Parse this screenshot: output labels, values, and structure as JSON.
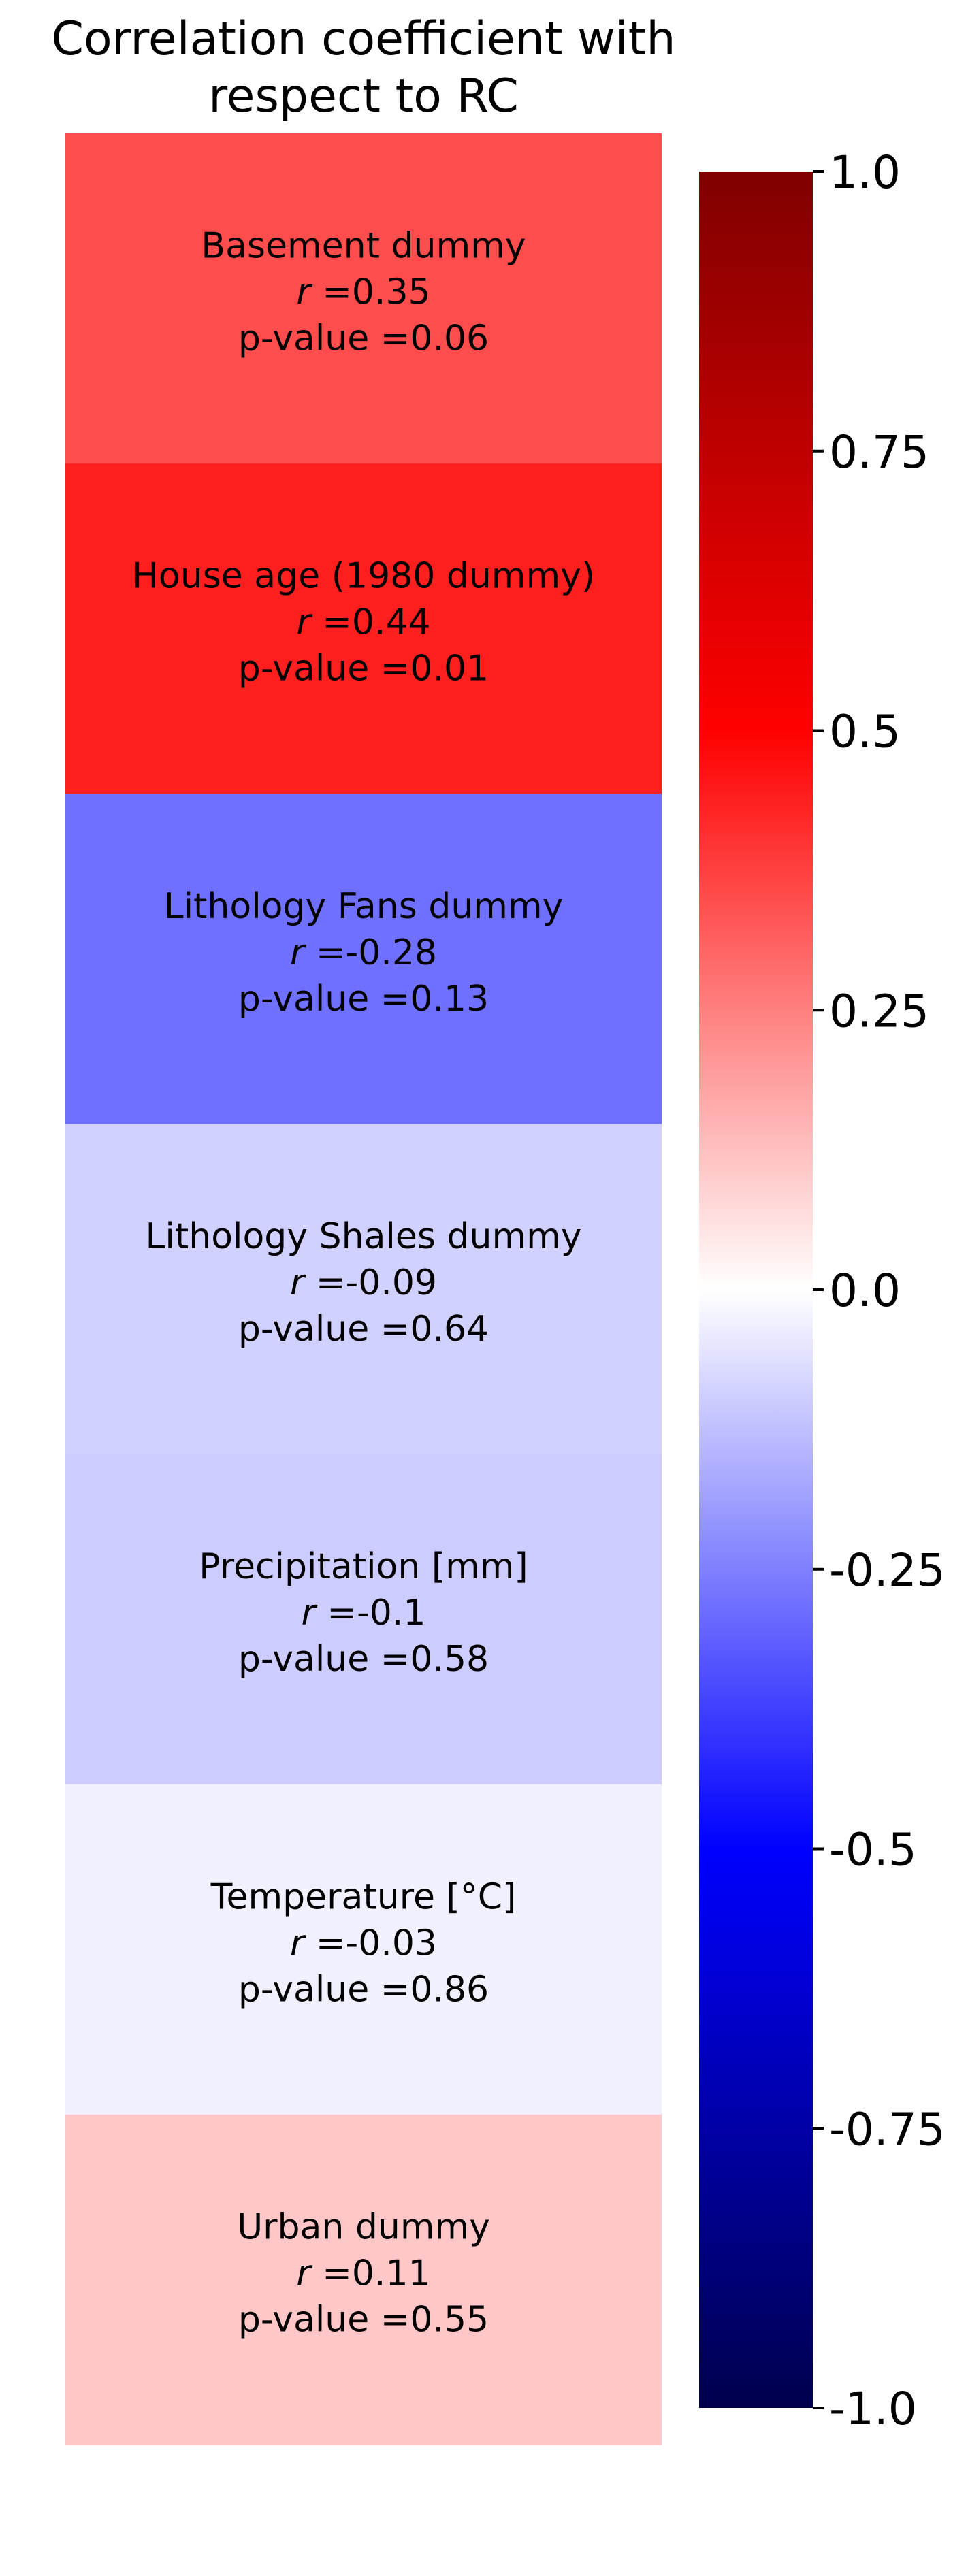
{
  "chart_data": {
    "type": "heatmap",
    "title_lines": [
      "Correlation coefficient with",
      "respect to RC"
    ],
    "cells": [
      {
        "name": "Basement dummy",
        "r": 0.35,
        "r_label": "0.35",
        "p_label": "0.06"
      },
      {
        "name": "House age (1980 dummy)",
        "r": 0.44,
        "r_label": "0.44",
        "p_label": "0.01"
      },
      {
        "name": "Lithology Fans dummy",
        "r": -0.28,
        "r_label": "-0.28",
        "p_label": "0.13"
      },
      {
        "name": "Lithology Shales dummy",
        "r": -0.09,
        "r_label": "-0.09",
        "p_label": "0.64"
      },
      {
        "name": "Precipitation [mm]",
        "r": -0.1,
        "r_label": "-0.1",
        "p_label": "0.58"
      },
      {
        "name": "Temperature [°C]",
        "r": -0.03,
        "r_label": "-0.03",
        "p_label": "0.86"
      },
      {
        "name": "Urban dummy",
        "r": 0.11,
        "r_label": "0.11",
        "p_label": "0.55"
      }
    ],
    "r_prefix": "r",
    "r_sep": " =",
    "p_prefix": "p-value =",
    "colormap": "seismic",
    "vmin": -1.0,
    "vmax": 1.0,
    "colorbar_ticks": [
      1.0,
      0.75,
      0.5,
      0.25,
      0.0,
      -0.25,
      -0.5,
      -0.75,
      -1.0
    ],
    "colorbar_tick_labels": [
      "1.0",
      "0.75",
      "0.5",
      "0.25",
      "0.0",
      "-0.25",
      "-0.5",
      "-0.75",
      "-1.0"
    ]
  }
}
